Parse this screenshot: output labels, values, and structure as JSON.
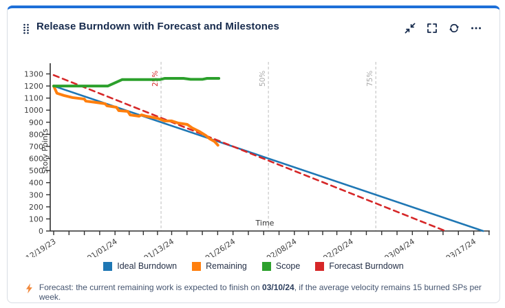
{
  "card": {
    "title": "Release Burndown with Forecast and Milestones",
    "accent_color": "#1d6fd8",
    "toolbar_icons": [
      "collapse",
      "fullscreen",
      "refresh",
      "more-options"
    ]
  },
  "chart_data": {
    "type": "line",
    "title": "Release Burndown with Forecast and Milestones",
    "xlabel": "Time",
    "ylabel": "Story Points",
    "x_unit": "days since 12/19/23",
    "ylim": [
      0,
      1300
    ],
    "x_range_days": [
      0,
      92.4
    ],
    "grid": "off",
    "legend_position": "bottom",
    "y_ticks": [
      0,
      100,
      200,
      300,
      400,
      500,
      600,
      700,
      800,
      900,
      1000,
      1100,
      1200,
      1300
    ],
    "x_ticks": [
      {
        "day": 0,
        "label": "12/19/23"
      },
      {
        "day": 13,
        "label": "01/01/24"
      },
      {
        "day": 25,
        "label": "01/13/24"
      },
      {
        "day": 38,
        "label": "01/26/24"
      },
      {
        "day": 51,
        "label": "02/08/24"
      },
      {
        "day": 63,
        "label": "02/20/24"
      },
      {
        "day": 76,
        "label": "03/04/24"
      },
      {
        "day": 89,
        "label": "03/17/24"
      }
    ],
    "minor_divisions": 4,
    "extra_minor_days": [
      92.25
    ],
    "milestones": [
      {
        "label": "25%",
        "day": 22.75,
        "label_color": "#d62728"
      },
      {
        "label": "50%",
        "day": 45.5,
        "label_color": "#a9a9a9"
      },
      {
        "label": "75%",
        "day": 68.25,
        "label_color": "#a9a9a9"
      }
    ],
    "milestone_line_color": "#bdbdbd",
    "axis_color": "#2f2f2f",
    "tick_label_color": "#3f3f3f",
    "series": [
      {
        "name": "Ideal Burndown",
        "color": "#1f77b4",
        "style": "solid",
        "width": 2.6,
        "points": [
          [
            0,
            1200
          ],
          [
            91,
            0
          ]
        ]
      },
      {
        "name": "Remaining",
        "color": "#ff7f0e",
        "style": "solid",
        "width": 4,
        "points": [
          [
            0,
            1200
          ],
          [
            0.7,
            1140
          ],
          [
            2.2,
            1121
          ],
          [
            4,
            1104
          ],
          [
            6.5,
            1092
          ],
          [
            6.8,
            1075
          ],
          [
            9,
            1064
          ],
          [
            10.9,
            1053
          ],
          [
            11.3,
            1036
          ],
          [
            13.3,
            1024
          ],
          [
            13.8,
            996
          ],
          [
            15.7,
            990
          ],
          [
            16.2,
            961
          ],
          [
            18.1,
            950
          ],
          [
            18.6,
            961
          ],
          [
            19.6,
            950
          ],
          [
            22,
            933
          ],
          [
            23.5,
            911
          ],
          [
            25,
            911
          ],
          [
            26.4,
            893
          ],
          [
            28.3,
            882
          ],
          [
            29.3,
            854
          ],
          [
            30.8,
            825
          ],
          [
            32.2,
            791
          ],
          [
            33.1,
            762
          ],
          [
            34.1,
            740
          ],
          [
            34.8,
            710
          ]
        ]
      },
      {
        "name": "Scope",
        "color": "#2ca02c",
        "style": "solid",
        "width": 4,
        "points": [
          [
            0,
            1200
          ],
          [
            11.5,
            1200
          ],
          [
            14.5,
            1253
          ],
          [
            22.5,
            1253
          ],
          [
            23.5,
            1263
          ],
          [
            27.5,
            1263
          ],
          [
            29,
            1255
          ],
          [
            31.5,
            1255
          ],
          [
            32.5,
            1263
          ],
          [
            35,
            1263
          ]
        ]
      },
      {
        "name": "Forecast Burndown",
        "color": "#d62728",
        "style": "dashed",
        "width": 2.6,
        "points": [
          [
            0,
            1290
          ],
          [
            83,
            0
          ]
        ]
      }
    ],
    "draw_order": [
      0,
      3,
      1,
      2
    ],
    "legend": [
      "Ideal Burndown",
      "Remaining",
      "Scope",
      "Forecast Burndown"
    ]
  },
  "footer": {
    "icon": "lightning-bolt",
    "text_before": "Forecast: the current remaining work is expected to finish on ",
    "date": "03/10/24",
    "text_after": ", if the average velocity remains 15 burned SPs per week."
  }
}
